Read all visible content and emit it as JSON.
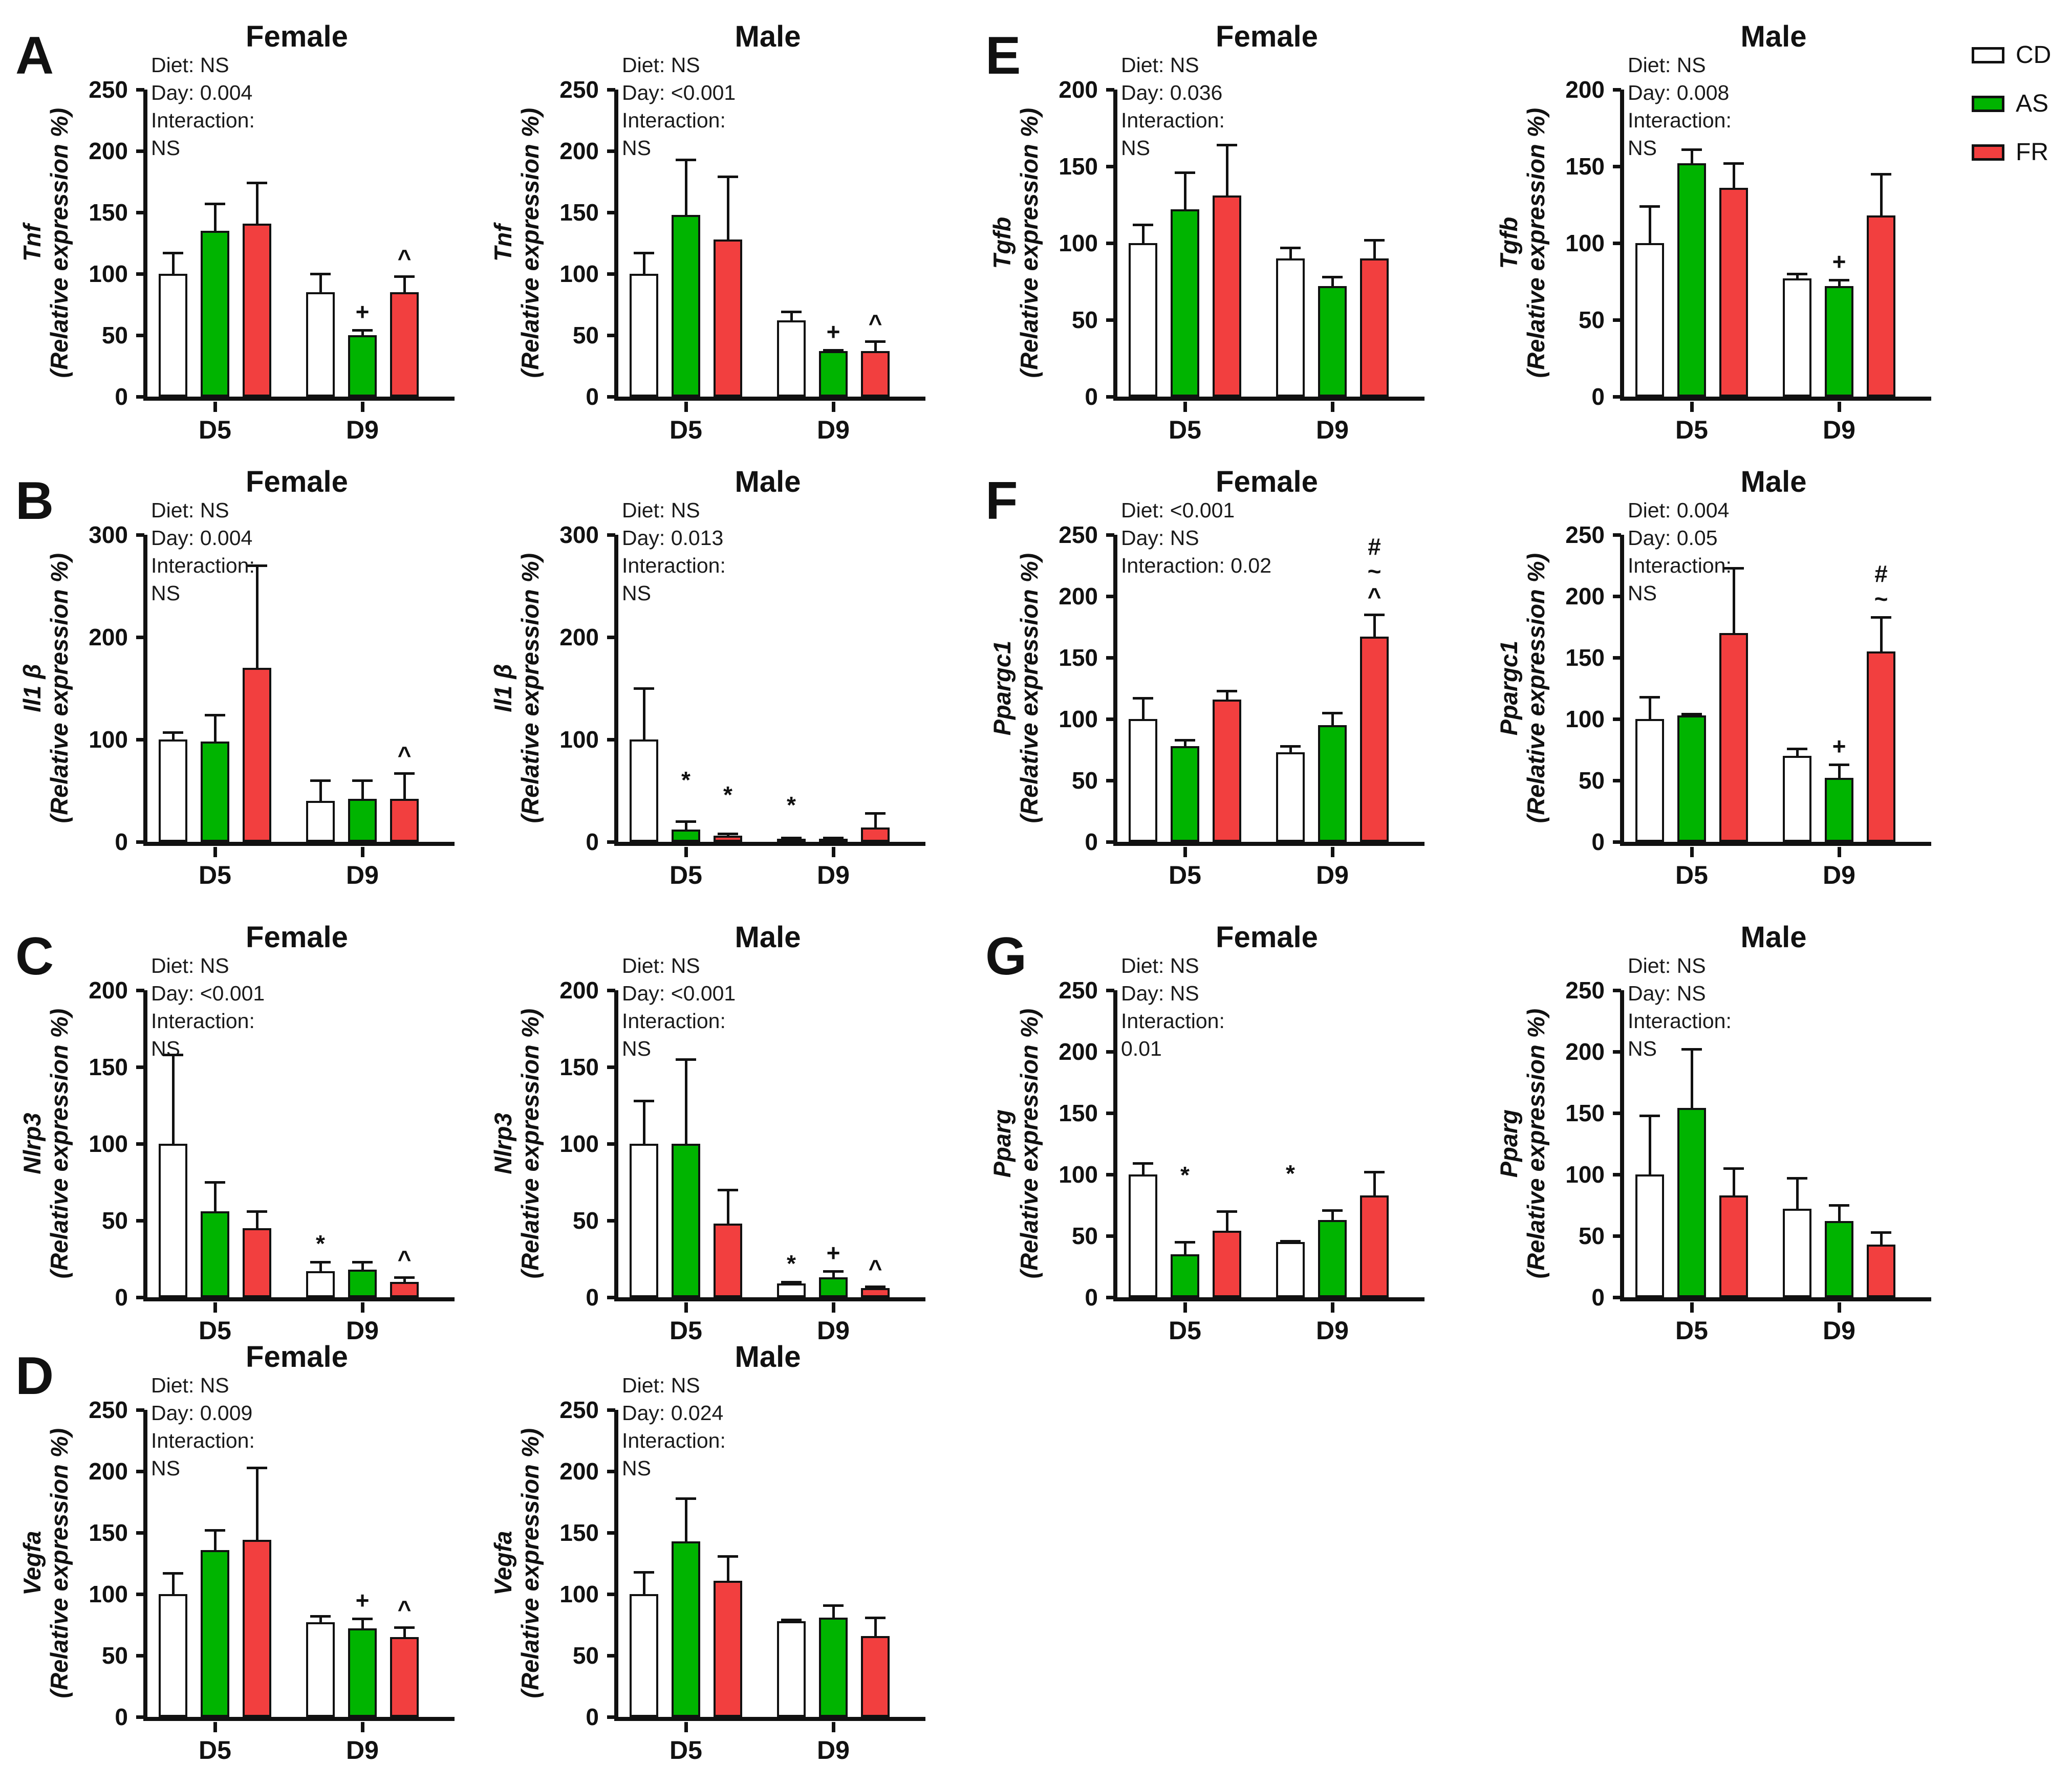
{
  "legend": {
    "items": [
      {
        "label": "CD",
        "color": "#FFFFFF"
      },
      {
        "label": "AS",
        "color": "#00B400"
      },
      {
        "label": "FR",
        "color": "#F23F3F"
      }
    ]
  },
  "axis": {
    "ylabel_line2": "(Relative expression %)",
    "categories": [
      "D5",
      "D9"
    ]
  },
  "chart_data": [
    {
      "type": "bar",
      "letter": "A",
      "title": "Female",
      "gene": "Tnf",
      "ylabel": "(Relative expression %)",
      "stats": [
        "Diet: NS",
        "Day: 0.004",
        "Interaction:",
        "NS"
      ],
      "ymax": 250,
      "ystep": 50,
      "categories": [
        "D5",
        "D9"
      ],
      "series": [
        "CD",
        "AS",
        "FR"
      ],
      "values": [
        [
          100,
          135,
          141
        ],
        [
          85,
          50,
          85
        ]
      ],
      "errors_top": [
        [
          117,
          157,
          174
        ],
        [
          100,
          54,
          98
        ]
      ],
      "symbols": [
        [
          "",
          "",
          ""
        ],
        [
          "",
          "+",
          "^"
        ]
      ]
    },
    {
      "type": "bar",
      "letter": "",
      "title": "Male",
      "gene": "Tnf",
      "ylabel": "(Relative expression %)",
      "stats": [
        "Diet: NS",
        "Day: <0.001",
        "Interaction:",
        "NS"
      ],
      "ymax": 250,
      "ystep": 50,
      "categories": [
        "D5",
        "D9"
      ],
      "series": [
        "CD",
        "AS",
        "FR"
      ],
      "values": [
        [
          100,
          148,
          128
        ],
        [
          62,
          37,
          37
        ]
      ],
      "errors_top": [
        [
          117,
          193,
          179
        ],
        [
          69,
          38,
          45
        ]
      ],
      "symbols": [
        [
          "",
          "",
          ""
        ],
        [
          "",
          "+",
          "^"
        ]
      ]
    },
    {
      "type": "bar",
      "letter": "E",
      "title": "Female",
      "gene": "Tgfb",
      "ylabel": "(Relative expression %)",
      "stats": [
        "Diet: NS",
        "Day: 0.036",
        "Interaction:",
        "NS"
      ],
      "ymax": 200,
      "ystep": 50,
      "categories": [
        "D5",
        "D9"
      ],
      "series": [
        "CD",
        "AS",
        "FR"
      ],
      "values": [
        [
          100,
          122,
          131
        ],
        [
          90,
          72,
          90
        ]
      ],
      "errors_top": [
        [
          112,
          146,
          164
        ],
        [
          97,
          78,
          102
        ]
      ],
      "symbols": [
        [
          "",
          "",
          ""
        ],
        [
          "",
          "",
          ""
        ]
      ]
    },
    {
      "type": "bar",
      "letter": "",
      "title": "Male",
      "gene": "Tgfb",
      "ylabel": "(Relative expression %)",
      "stats": [
        "Diet: NS",
        "Day: 0.008",
        "Interaction:",
        "NS"
      ],
      "ymax": 200,
      "ystep": 50,
      "categories": [
        "D5",
        "D9"
      ],
      "series": [
        "CD",
        "AS",
        "FR"
      ],
      "values": [
        [
          100,
          152,
          136
        ],
        [
          77,
          72,
          118
        ]
      ],
      "errors_top": [
        [
          124,
          161,
          152
        ],
        [
          80,
          76,
          145
        ]
      ],
      "symbols": [
        [
          "",
          "",
          ""
        ],
        [
          "",
          "+",
          ""
        ]
      ]
    },
    {
      "type": "bar",
      "letter": "B",
      "title": "Female",
      "gene": "Il1 β",
      "ylabel": "(Relative expression %)",
      "stats": [
        "Diet: NS",
        "Day: 0.004",
        "Interaction:",
        "NS"
      ],
      "ymax": 300,
      "ystep": 100,
      "categories": [
        "D5",
        "D9"
      ],
      "series": [
        "CD",
        "AS",
        "FR"
      ],
      "values": [
        [
          100,
          98,
          170
        ],
        [
          40,
          42,
          42
        ]
      ],
      "errors_top": [
        [
          107,
          124,
          270
        ],
        [
          60,
          60,
          67
        ]
      ],
      "symbols": [
        [
          "",
          "",
          ""
        ],
        [
          "",
          "",
          "^"
        ]
      ]
    },
    {
      "type": "bar",
      "letter": "",
      "title": "Male",
      "gene": "Il1 β",
      "ylabel": "(Relative expression %)",
      "stats": [
        "Diet: NS",
        "Day: 0.013",
        "Interaction:",
        "NS"
      ],
      "ymax": 300,
      "ystep": 100,
      "categories": [
        "D5",
        "D9"
      ],
      "series": [
        "CD",
        "AS",
        "FR"
      ],
      "values": [
        [
          100,
          12,
          6
        ],
        [
          3,
          3,
          14
        ]
      ],
      "errors_top": [
        [
          150,
          20,
          8
        ],
        [
          4,
          4,
          28
        ]
      ],
      "symbols": [
        [
          "",
          "*",
          "*"
        ],
        [
          "*",
          "",
          ""
        ]
      ],
      "symbol_raise": [
        [
          0,
          45,
          40
        ],
        [
          28,
          0,
          0
        ]
      ]
    },
    {
      "type": "bar",
      "letter": "F",
      "title": "Female",
      "gene": "Ppargc1",
      "ylabel": "(Relative expression %)",
      "stats": [
        "Diet: <0.001",
        "Day: NS",
        "Interaction: 0.02"
      ],
      "ymax": 250,
      "ystep": 50,
      "categories": [
        "D5",
        "D9"
      ],
      "series": [
        "CD",
        "AS",
        "FR"
      ],
      "values": [
        [
          100,
          78,
          116
        ],
        [
          73,
          95,
          167
        ]
      ],
      "errors_top": [
        [
          117,
          83,
          123
        ],
        [
          78,
          105,
          185
        ]
      ],
      "symbols": [
        [
          "",
          "",
          ""
        ],
        [
          "",
          "",
          "#\n~\n^"
        ]
      ]
    },
    {
      "type": "bar",
      "letter": "",
      "title": "Male",
      "gene": "Ppargc1",
      "ylabel": "(Relative expression %)",
      "stats": [
        "Diet: 0.004",
        "Day: 0.05",
        "Interaction:",
        "NS"
      ],
      "ymax": 250,
      "ystep": 50,
      "categories": [
        "D5",
        "D9"
      ],
      "series": [
        "CD",
        "AS",
        "FR"
      ],
      "values": [
        [
          100,
          103,
          170
        ],
        [
          70,
          52,
          155
        ]
      ],
      "errors_top": [
        [
          118,
          104,
          223
        ],
        [
          76,
          63,
          183
        ]
      ],
      "symbols": [
        [
          "",
          "",
          ""
        ],
        [
          "",
          "+",
          "#\n~"
        ]
      ]
    },
    {
      "type": "bar",
      "letter": "C",
      "title": "Female",
      "gene": "Nlrp3",
      "ylabel": "(Relative expression %)",
      "stats": [
        "Diet: NS",
        "Day: <0.001",
        "Interaction:",
        "NS"
      ],
      "ymax": 200,
      "ystep": 50,
      "categories": [
        "D5",
        "D9"
      ],
      "series": [
        "CD",
        "AS",
        "FR"
      ],
      "values": [
        [
          100,
          56,
          45
        ],
        [
          17,
          18,
          10
        ]
      ],
      "errors_top": [
        [
          158,
          75,
          56
        ],
        [
          23,
          23,
          13
        ]
      ],
      "symbols": [
        [
          "",
          "",
          ""
        ],
        [
          "*",
          "",
          "^"
        ]
      ]
    },
    {
      "type": "bar",
      "letter": "",
      "title": "Male",
      "gene": "Nlrp3",
      "ylabel": "(Relative expression %)",
      "stats": [
        "Diet: NS",
        "Day: <0.001",
        "Interaction:",
        "NS"
      ],
      "ymax": 200,
      "ystep": 50,
      "categories": [
        "D5",
        "D9"
      ],
      "series": [
        "CD",
        "AS",
        "FR"
      ],
      "values": [
        [
          100,
          100,
          48
        ],
        [
          9,
          13,
          6
        ]
      ],
      "errors_top": [
        [
          128,
          155,
          70
        ],
        [
          10,
          17,
          7
        ]
      ],
      "symbols": [
        [
          "",
          "",
          ""
        ],
        [
          "*",
          "+",
          "^"
        ]
      ]
    },
    {
      "type": "bar",
      "letter": "G",
      "title": "Female",
      "gene": "Pparg",
      "ylabel": "(Relative expression %)",
      "stats": [
        "Diet: NS",
        "Day: NS",
        "Interaction:",
        "0.01"
      ],
      "ymax": 250,
      "ystep": 50,
      "categories": [
        "D5",
        "D9"
      ],
      "series": [
        "CD",
        "AS",
        "FR"
      ],
      "values": [
        [
          100,
          35,
          54
        ],
        [
          45,
          63,
          83
        ]
      ],
      "errors_top": [
        [
          109,
          45,
          70
        ],
        [
          46,
          71,
          102
        ]
      ],
      "symbols": [
        [
          "",
          "*",
          ""
        ],
        [
          "*",
          "",
          ""
        ]
      ],
      "symbol_raise": [
        [
          0,
          95,
          0
        ],
        [
          95,
          0,
          0
        ]
      ]
    },
    {
      "type": "bar",
      "letter": "",
      "title": "Male",
      "gene": "Pparg",
      "ylabel": "(Relative expression %)",
      "stats": [
        "Diet: NS",
        "Day: NS",
        "Interaction:",
        "NS"
      ],
      "ymax": 250,
      "ystep": 50,
      "categories": [
        "D5",
        "D9"
      ],
      "series": [
        "CD",
        "AS",
        "FR"
      ],
      "values": [
        [
          100,
          154,
          83
        ],
        [
          72,
          62,
          43
        ]
      ],
      "errors_top": [
        [
          148,
          202,
          105
        ],
        [
          97,
          75,
          53
        ]
      ],
      "symbols": [
        [
          "",
          "",
          ""
        ],
        [
          "",
          "",
          ""
        ]
      ]
    },
    {
      "type": "bar",
      "letter": "D",
      "title": "Female",
      "gene": "Vegfa",
      "ylabel": "(Relative expression %)",
      "stats": [
        "Diet: NS",
        "Day: 0.009",
        "Interaction:",
        "NS"
      ],
      "ymax": 250,
      "ystep": 50,
      "categories": [
        "D5",
        "D9"
      ],
      "series": [
        "CD",
        "AS",
        "FR"
      ],
      "values": [
        [
          100,
          136,
          144
        ],
        [
          77,
          72,
          65
        ]
      ],
      "errors_top": [
        [
          117,
          152,
          203
        ],
        [
          82,
          80,
          73
        ]
      ],
      "symbols": [
        [
          "",
          "",
          ""
        ],
        [
          "",
          "+",
          "^"
        ]
      ]
    },
    {
      "type": "bar",
      "letter": "",
      "title": "Male",
      "gene": "Vegfa",
      "ylabel": "(Relative expression %)",
      "stats": [
        "Diet: NS",
        "Day: 0.024",
        "Interaction:",
        "NS"
      ],
      "ymax": 250,
      "ystep": 50,
      "categories": [
        "D5",
        "D9"
      ],
      "series": [
        "CD",
        "AS",
        "FR"
      ],
      "values": [
        [
          100,
          143,
          111
        ],
        [
          78,
          81,
          66
        ]
      ],
      "errors_top": [
        [
          118,
          178,
          131
        ],
        [
          79,
          91,
          81
        ]
      ],
      "symbols": [
        [
          "",
          "",
          ""
        ],
        [
          "",
          "",
          ""
        ]
      ]
    }
  ]
}
